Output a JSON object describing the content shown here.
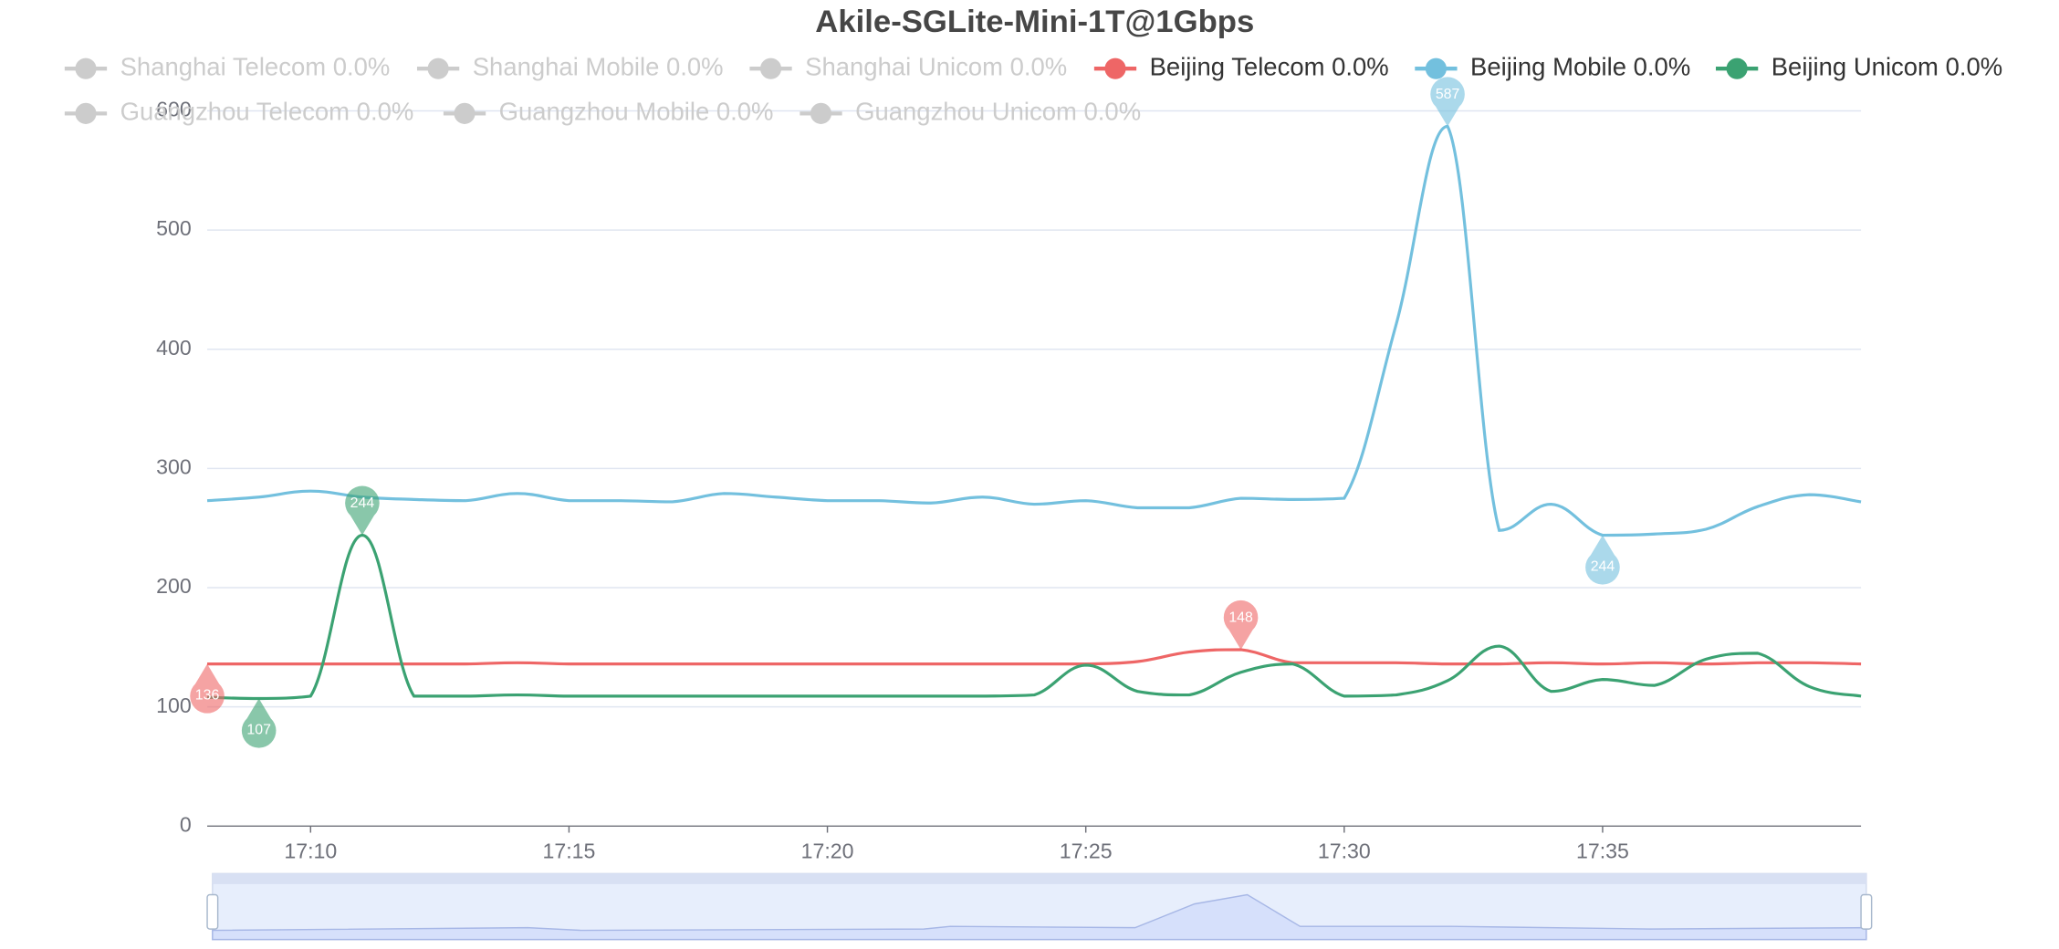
{
  "chart_data": {
    "type": "line",
    "title": "Akile-SGLite-Mini-1T@1Gbps",
    "x": [
      "17:08",
      "17:09",
      "17:10",
      "17:11",
      "17:12",
      "17:13",
      "17:14",
      "17:15",
      "17:16",
      "17:17",
      "17:18",
      "17:19",
      "17:20",
      "17:21",
      "17:22",
      "17:23",
      "17:24",
      "17:25",
      "17:26",
      "17:27",
      "17:28",
      "17:29",
      "17:30",
      "17:31",
      "17:32",
      "17:33",
      "17:34",
      "17:35",
      "17:36",
      "17:37",
      "17:38",
      "17:39",
      "17:40"
    ],
    "xlim": [
      "17:08",
      "17:40"
    ],
    "xticks": [
      "17:10",
      "17:15",
      "17:20",
      "17:25",
      "17:30",
      "17:35"
    ],
    "ylim": [
      0,
      600
    ],
    "yticks": [
      0,
      100,
      200,
      300,
      400,
      500,
      600
    ],
    "grid": true,
    "smooth": true,
    "series": [
      {
        "name": "Shanghai Telecom 0.0%",
        "color": "#cccccc",
        "hidden": true
      },
      {
        "name": "Shanghai Mobile 0.0%",
        "color": "#cccccc",
        "hidden": true
      },
      {
        "name": "Shanghai Unicom 0.0%",
        "color": "#cccccc",
        "hidden": true
      },
      {
        "name": "Beijing Telecom 0.0%",
        "color": "#ee6666",
        "values": [
          136,
          136,
          136,
          136,
          136,
          136,
          137,
          136,
          136,
          136,
          136,
          136,
          136,
          136,
          136,
          136,
          136,
          136,
          138,
          146,
          148,
          137,
          137,
          137,
          136,
          136,
          137,
          136,
          137,
          136,
          137,
          137,
          136
        ],
        "mark_points": [
          {
            "kind": "max",
            "x": "17:28",
            "value": 148
          },
          {
            "kind": "min",
            "x": "17:08",
            "value": 136
          }
        ]
      },
      {
        "name": "Beijing Mobile 0.0%",
        "color": "#73c0de",
        "values": [
          273,
          276,
          281,
          276,
          274,
          273,
          279,
          273,
          273,
          272,
          279,
          276,
          273,
          273,
          271,
          276,
          270,
          273,
          267,
          267,
          275,
          274,
          275,
          420,
          587,
          248,
          270,
          244,
          245,
          249,
          268,
          278,
          272
        ],
        "mark_points": [
          {
            "kind": "max",
            "x": "17:32",
            "value": 587
          },
          {
            "kind": "min",
            "x": "17:35",
            "value": 244
          }
        ]
      },
      {
        "name": "Beijing Unicom 0.0%",
        "color": "#3ba272",
        "values": [
          108,
          107,
          109,
          244,
          109,
          109,
          110,
          109,
          109,
          109,
          109,
          109,
          109,
          109,
          109,
          109,
          110,
          135,
          113,
          110,
          129,
          136,
          109,
          110,
          122,
          151,
          113,
          123,
          118,
          140,
          145,
          117,
          109
        ],
        "mark_points": [
          {
            "kind": "max",
            "x": "17:11",
            "value": 244
          },
          {
            "kind": "min",
            "x": "17:09",
            "value": 107
          }
        ]
      },
      {
        "name": "Guangzhou Telecom 0.0%",
        "color": "#cccccc",
        "hidden": true
      },
      {
        "name": "Guangzhou Mobile 0.0%",
        "color": "#cccccc",
        "hidden": true
      },
      {
        "name": "Guangzhou Unicom 0.0%",
        "color": "#cccccc",
        "hidden": true
      }
    ]
  }
}
